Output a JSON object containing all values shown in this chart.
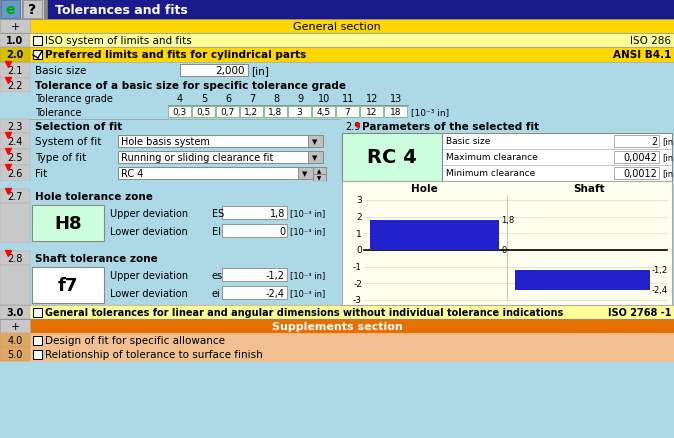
{
  "title": "Tolerances and fits",
  "bg_main": "#add8e6",
  "bg_header": "#1a1a8c",
  "bg_yellow": "#ffd700",
  "bg_lightyellow": "#ffff99",
  "bg_orange": "#e87000",
  "bg_peach": "#f0c090",
  "bg_green_cell": "#ccffdd",
  "bg_chart": "#fffff0",
  "bar_color": "#2222cc",
  "text_white": "#ffffff",
  "text_black": "#000000",
  "section_general": "General section",
  "section_supplements": "Supplements section",
  "row10_label": "ISO system of limits and fits",
  "row10_right": "ISO 286",
  "row20_label": "Preferred limits and fits for cylindrical parts",
  "row20_right": "ANSI B4.1",
  "row21_label": "Basic size",
  "row21_value": "2,000",
  "row21_unit": "[in]",
  "row22_label": "Tolerance of a basic size for specific tolerance grade",
  "tol_grades": [
    "4",
    "5",
    "6",
    "7",
    "8",
    "9",
    "10",
    "11",
    "12",
    "13"
  ],
  "tol_values": [
    "0,3",
    "0,5",
    "0,7",
    "1,2",
    "1,8",
    "3",
    "4,5",
    "7",
    "12",
    "18"
  ],
  "tol_unit": "[10⁻³ in]",
  "row23_label": "Selection of fit",
  "row24_label": "System of fit",
  "row24_value": "Hole basis system",
  "row25_label": "Type of fit",
  "row25_value": "Running or sliding clearance fit",
  "row26_label": "Fit",
  "row26_value": "RC 4",
  "row29_label": "Parameters of the selected fit",
  "rc4_label": "RC 4",
  "param_basic_size": "2",
  "param_max_clearance": "0,0042",
  "param_min_clearance": "0,0012",
  "row27_label": "Hole tolerance zone",
  "hole_symbol": "H8",
  "hole_upper_label": "Upper deviation",
  "hole_upper_sym": "ES",
  "hole_upper_val": "1,8",
  "hole_lower_label": "Lower deviation",
  "hole_lower_sym": "EI",
  "hole_lower_val": "0",
  "hole_unit": "[10⁻³ in]",
  "row28_label": "Shaft tolerance zone",
  "shaft_symbol": "f7",
  "shaft_upper_label": "Upper deviation",
  "shaft_upper_sym": "es",
  "shaft_upper_val": "-1,2",
  "shaft_lower_label": "Lower deviation",
  "shaft_lower_sym": "ei",
  "shaft_lower_val": "-2,4",
  "shaft_unit": "[10⁻³ in]",
  "chart_hole_label": "Hole",
  "chart_shaft_label": "Shaft",
  "hole_upper": 1.8,
  "hole_lower": 0.0,
  "shaft_upper": -1.2,
  "shaft_lower": -2.4,
  "chart_yticks": [
    -3,
    -2,
    -1,
    0,
    1,
    2,
    3
  ],
  "row30_label": "General tolerances for linear and angular dimensions without individual tolerance indications",
  "row30_right": "ISO 2768 -1",
  "row40_label": "Design of fit for specific allowance",
  "row50_label": "Relationship of tolerance to surface finish"
}
